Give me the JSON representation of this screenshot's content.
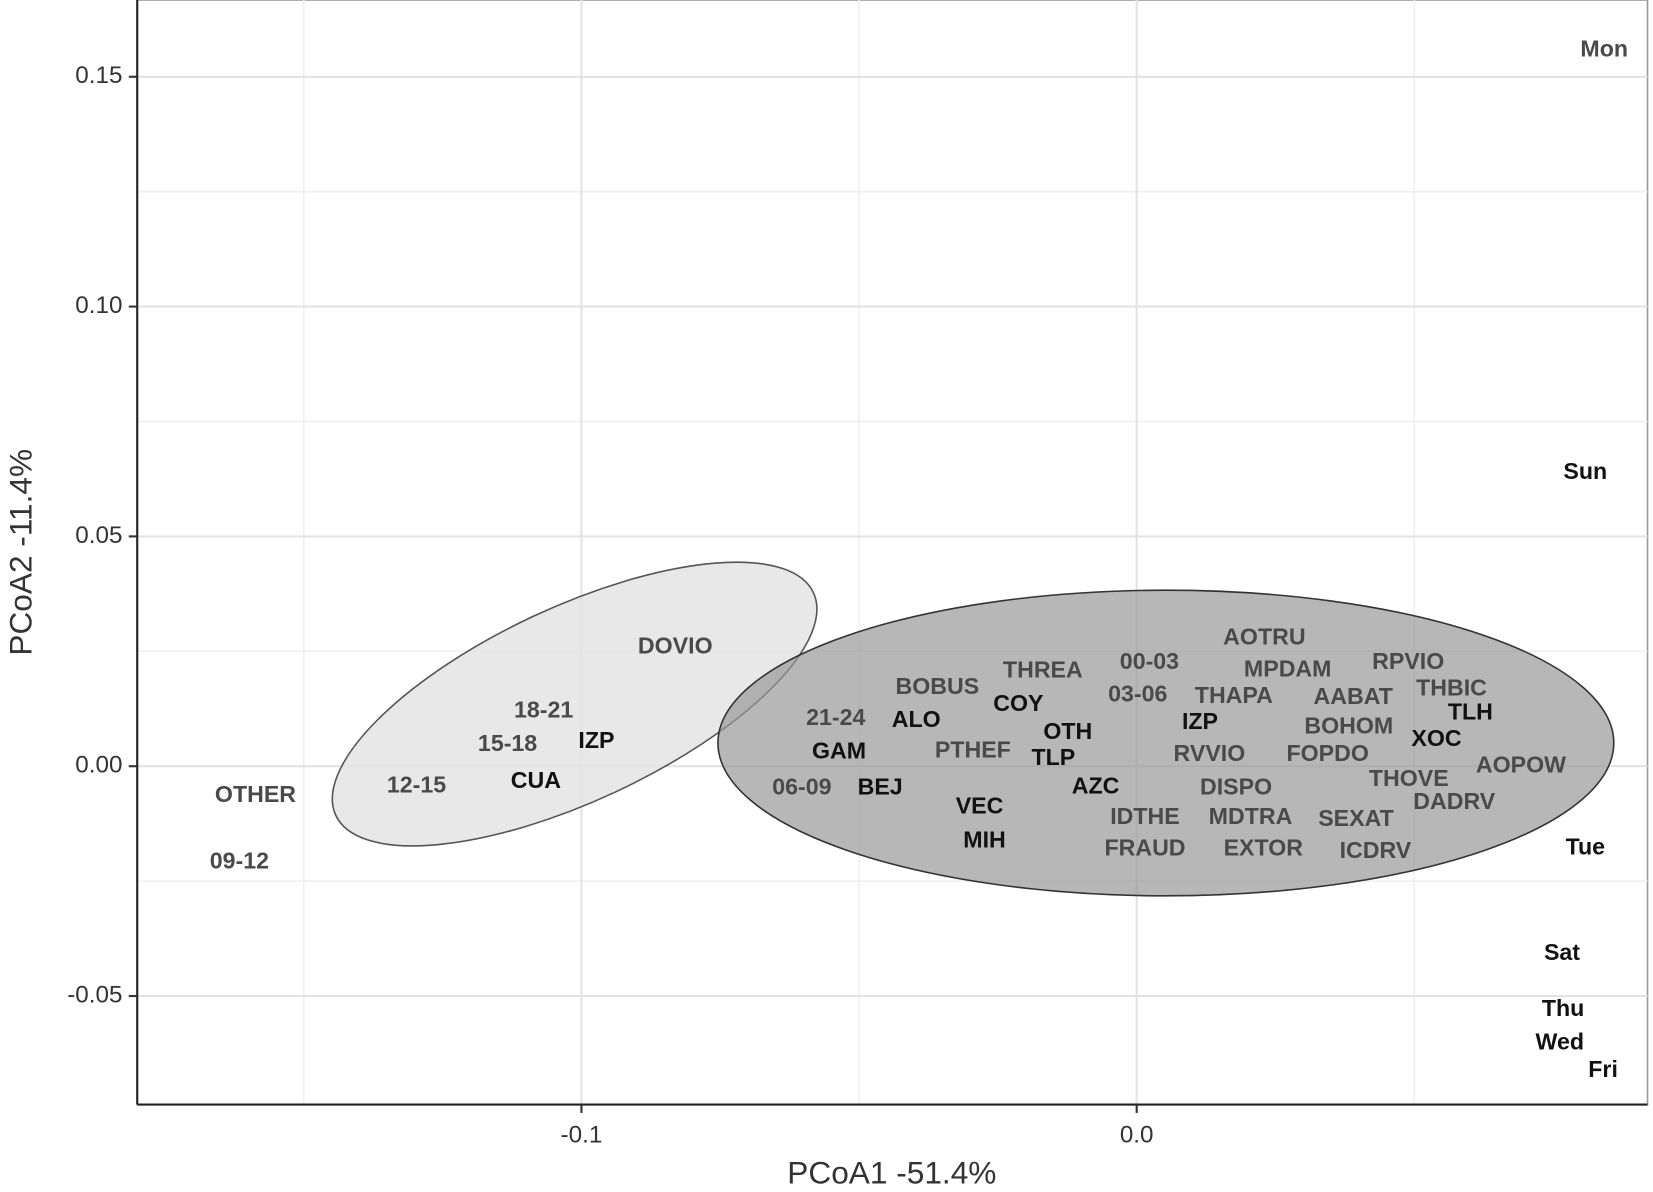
{
  "chart_data": {
    "type": "scatter",
    "x_label": "PCoA1 -51.4%",
    "y_label": "PCoA2 -11.4%",
    "xlim": [
      -0.18,
      0.092
    ],
    "ylim": [
      -0.0736,
      0.1667
    ],
    "xticks": [
      -0.1,
      {
        "value": 0,
        "label": "0.0"
      }
    ],
    "yticks": [
      -0.05,
      {
        "value": 0,
        "label": "0.00"
      },
      0.05,
      {
        "value": 0.1,
        "label": "0.10"
      },
      0.15
    ],
    "xminorticks": [
      -0.15,
      -0.05,
      0.05
    ],
    "yminorticks": [
      -0.025,
      0.025,
      0.075,
      0.125
    ],
    "grid": true,
    "colors": {
      "bold": "#111111",
      "regular": "#4a4a4a"
    },
    "labels": [
      "Mon",
      "Sun",
      "Tue",
      "Sat",
      "Thu",
      "Wed",
      "Fri",
      "OTHER",
      "09-12",
      "12-15",
      "CUA",
      "15-18",
      "IZP",
      "18-21",
      "DOVIO",
      "21-24",
      "ALO",
      "GAM",
      "06-09",
      "BEJ",
      "BOBUS",
      "COY",
      "THREA",
      "OTH",
      "PTHEF",
      "TLP",
      "AZC",
      "VEC",
      "MIH",
      "00-03",
      "03-06",
      "THAPA",
      "IZP",
      "AOTRU",
      "MPDAM",
      "RPVIO",
      "THBIC",
      "AABAT",
      "TLH",
      "BOHOM",
      "XOC",
      "AOPOW",
      "RVVIO",
      "FOPDO",
      "THOVE",
      "DADRV",
      "DISPO",
      "IDTHE",
      "MDTRA",
      "SEXAT",
      "FRAUD",
      "EXTOR",
      "ICDRV"
    ],
    "x": [
      0.0842,
      0.0808,
      0.0808,
      0.0766,
      0.0768,
      0.0762,
      0.084,
      -0.1587,
      -0.1616,
      -0.1297,
      -0.1082,
      -0.1133,
      -0.0973,
      -0.1068,
      -0.0831,
      -0.0542,
      -0.0397,
      -0.0536,
      -0.0603,
      -0.0462,
      -0.0359,
      -0.0213,
      -0.0169,
      -0.0124,
      -0.0295,
      -0.015,
      -0.0074,
      -0.0283,
      -0.0274,
      0.0023,
      0.0002,
      0.0175,
      0.0114,
      0.023,
      0.0272,
      0.0489,
      0.0567,
      0.039,
      0.0601,
      0.0382,
      0.054,
      0.0692,
      0.0131,
      0.0344,
      0.049,
      0.0572,
      0.0179,
      0.0015,
      0.0205,
      0.0395,
      0.0015,
      0.0228,
      0.043
    ],
    "y": [
      0.1557,
      0.0638,
      -0.0179,
      -0.0408,
      -0.053,
      -0.0603,
      -0.0663,
      -0.0064,
      -0.0209,
      -0.0044,
      -0.0034,
      0.0046,
      0.0053,
      0.0119,
      0.0259,
      0.0103,
      0.0099,
      0.003,
      -0.0048,
      -0.0048,
      0.017,
      0.0133,
      0.0206,
      0.0073,
      0.0032,
      0.0016,
      -0.0046,
      -0.0089,
      -0.0163,
      0.0225,
      0.0154,
      0.0151,
      0.0094,
      0.0278,
      0.0209,
      0.0225,
      0.0167,
      0.0149,
      0.0115,
      0.0085,
      0.0057,
      0.0,
      0.0025,
      0.0025,
      -0.003,
      -0.008,
      -0.0048,
      -0.0112,
      -0.0112,
      -0.0117,
      -0.0181,
      -0.0181,
      -0.0186
    ],
    "bold": [
      false,
      true,
      true,
      true,
      true,
      true,
      true,
      false,
      false,
      false,
      true,
      false,
      true,
      false,
      false,
      false,
      true,
      true,
      false,
      true,
      false,
      true,
      false,
      true,
      false,
      true,
      true,
      true,
      true,
      false,
      false,
      false,
      true,
      false,
      false,
      false,
      false,
      false,
      true,
      false,
      true,
      false,
      false,
      false,
      false,
      false,
      false,
      false,
      false,
      false,
      false,
      false,
      false
    ]
  }
}
